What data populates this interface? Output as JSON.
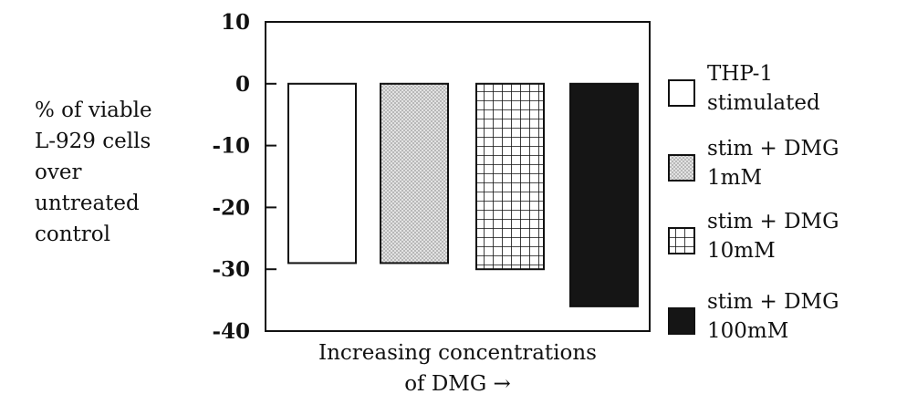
{
  "chart_data": {
    "type": "bar",
    "ylabel_lines": [
      "% of viable",
      "L-929 cells",
      "over",
      "untreated",
      "control"
    ],
    "xlabel_lines": [
      "Increasing concentrations",
      "of DMG →"
    ],
    "ylim": [
      -40,
      10
    ],
    "yticks": [
      "10",
      "0",
      "-10",
      "-20",
      "-30",
      "-40"
    ],
    "ytick_values": [
      10,
      0,
      -10,
      -20,
      -30,
      -40
    ],
    "grid": false,
    "legend_position": "right",
    "series": [
      {
        "legend_lines": [
          "THP-1",
          "stimulated"
        ],
        "value": -29,
        "fill": "white"
      },
      {
        "legend_lines": [
          "stim + DMG",
          "1mM"
        ],
        "value": -29,
        "fill": "dots"
      },
      {
        "legend_lines": [
          "stim + DMG",
          "10mM"
        ],
        "value": -30,
        "fill": "grid"
      },
      {
        "legend_lines": [
          "stim + DMG",
          "100mM"
        ],
        "value": -36,
        "fill": "black"
      }
    ],
    "colors": {
      "ink": "#111111",
      "dots_bg": "#e2e2e2",
      "dots_fg": "#9a9a9a",
      "solid": "#151515"
    }
  }
}
